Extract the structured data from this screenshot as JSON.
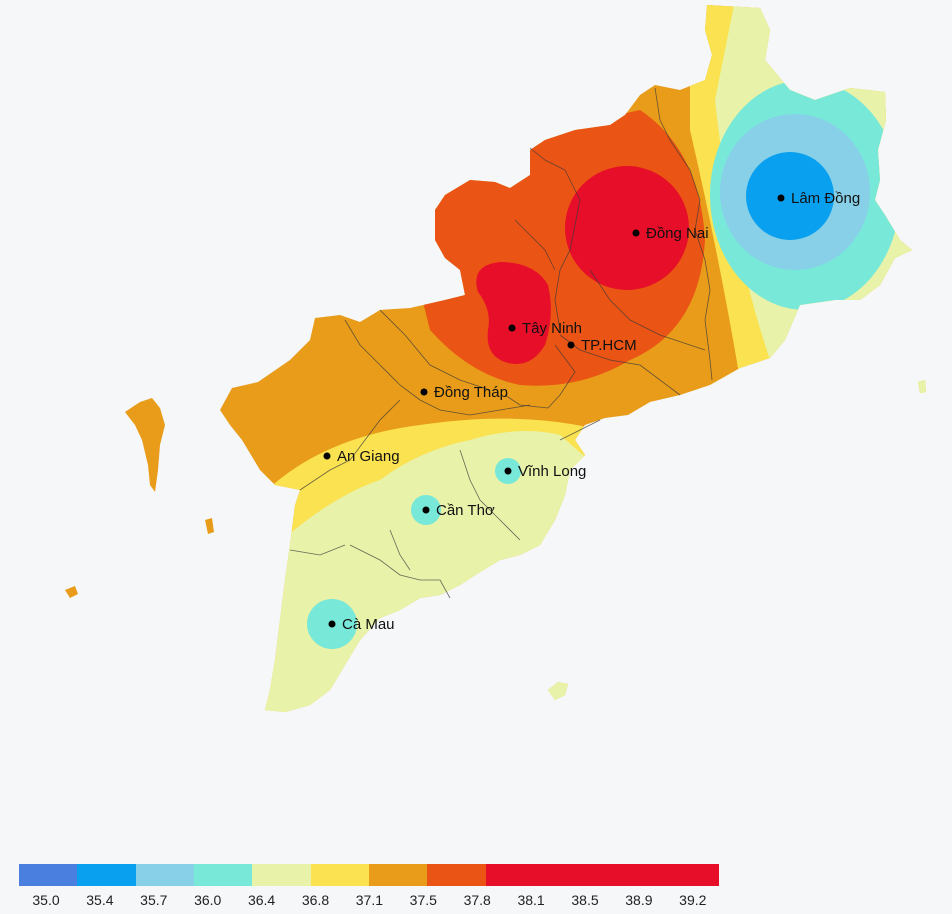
{
  "map": {
    "provinces": [
      {
        "name": "Lâm Đồng"
      },
      {
        "name": "Đồng Nai"
      },
      {
        "name": "Tây Ninh"
      },
      {
        "name": "TP.HCM"
      },
      {
        "name": "Đồng Tháp"
      },
      {
        "name": "An Giang"
      },
      {
        "name": "Vĩnh Long"
      },
      {
        "name": "Cần Thơ"
      },
      {
        "name": "Cà Mau"
      }
    ],
    "colors": {
      "background": "#f5f7f9",
      "c350": "#4a7fe0",
      "c354": "#0aa0f0",
      "c357": "#87d0e8",
      "c360": "#78e8d8",
      "c364": "#e8f2a8",
      "c368": "#fae250",
      "c371": "#e89c1a",
      "c375": "#ea5414",
      "c378": "#e60e28"
    }
  },
  "legend": {
    "ticks": [
      "35.0",
      "35.4",
      "35.7",
      "36.0",
      "36.4",
      "36.8",
      "37.1",
      "37.5",
      "37.8",
      "38.1",
      "38.5",
      "38.9",
      "39.2"
    ],
    "bands": [
      "#4a7fe0",
      "#0aa0f0",
      "#87d0e8",
      "#78e8d8",
      "#e8f2a8",
      "#fae250",
      "#e89c1a",
      "#ea5414",
      "#e60e28",
      "#e60e28",
      "#e60e28",
      "#e60e28"
    ]
  }
}
